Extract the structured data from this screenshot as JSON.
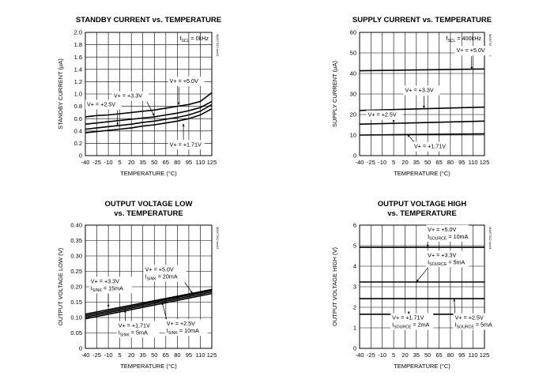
{
  "chart_data": [
    {
      "id": "c1",
      "type": "line",
      "title": [
        "STANDBY CURRENT vs. TEMPERATURE"
      ],
      "xlabel": "TEMPERATURE (°C)",
      "ylabel": "STANDBY CURRENT (µA)",
      "code": "MAX7322 toc01",
      "xlim": [
        -40,
        125
      ],
      "ylim": [
        0,
        2.0
      ],
      "xticks": [
        -40,
        -25,
        -10,
        5,
        20,
        35,
        50,
        65,
        80,
        95,
        110,
        125
      ],
      "yticks": [
        0,
        0.2,
        0.4,
        0.6,
        0.8,
        1.0,
        1.2,
        1.4,
        1.6,
        1.8,
        2.0
      ],
      "ytick_labels": [
        "0",
        "0.2",
        "0.4",
        "0.6",
        "0.8",
        "1.0",
        "1.2",
        "1.4",
        "1.6",
        "1.8",
        "2.0"
      ],
      "grid": true,
      "cond_lines": [
        {
          "text": "f",
          "sub": "SCL",
          "rest": " = 0kHz"
        }
      ],
      "series": [
        {
          "name": "V+ = +5.0V",
          "x": [
            -40,
            -25,
            -10,
            5,
            20,
            35,
            50,
            65,
            80,
            95,
            110,
            125
          ],
          "values": [
            0.63,
            0.65,
            0.66,
            0.68,
            0.7,
            0.72,
            0.74,
            0.77,
            0.8,
            0.83,
            0.88,
            1.02
          ]
        },
        {
          "name": "V+ = +3.3V",
          "x": [
            -40,
            -25,
            -10,
            5,
            20,
            35,
            50,
            65,
            80,
            95,
            110,
            125
          ],
          "values": [
            0.51,
            0.53,
            0.55,
            0.57,
            0.59,
            0.61,
            0.63,
            0.66,
            0.69,
            0.73,
            0.78,
            0.88
          ]
        },
        {
          "name": "V+ = +2.5V",
          "x": [
            -40,
            -25,
            -10,
            5,
            20,
            35,
            50,
            65,
            80,
            95,
            110,
            125
          ],
          "values": [
            0.43,
            0.45,
            0.47,
            0.49,
            0.51,
            0.54,
            0.56,
            0.59,
            0.62,
            0.66,
            0.72,
            0.83
          ]
        },
        {
          "name": "V+ = +1.71V",
          "x": [
            -40,
            -25,
            -10,
            5,
            20,
            35,
            50,
            65,
            80,
            95,
            110,
            125
          ],
          "values": [
            0.37,
            0.39,
            0.41,
            0.43,
            0.45,
            0.48,
            0.5,
            0.53,
            0.56,
            0.6,
            0.66,
            0.76
          ]
        }
      ],
      "annotations": [
        {
          "text": "V+ = +5.0V",
          "pos": [
            70,
            1.18
          ],
          "tip": [
            82,
            0.82
          ]
        },
        {
          "text": "V+ = +3.3V",
          "pos": [
            -3,
            0.94
          ],
          "tip": [
            50,
            0.64
          ]
        },
        {
          "text": "V+ = +2.5V",
          "pos": [
            -38,
            0.8
          ],
          "tip": [
            2,
            0.49
          ]
        },
        {
          "text": "V+ = +1.71V",
          "pos": [
            70,
            0.15
          ],
          "tip": [
            88,
            0.52
          ]
        }
      ]
    },
    {
      "id": "c2",
      "type": "line",
      "title": [
        "SUPPLY CURRENT vs. TEMPERATURE"
      ],
      "xlabel": "TEMPERATURE (°C)",
      "ylabel": "SUPPLY CURRENT (µA)",
      "code": "MAX7322 toc02",
      "xlim": [
        -40,
        125
      ],
      "ylim": [
        0,
        60
      ],
      "xticks": [
        -40,
        -25,
        -10,
        5,
        20,
        35,
        50,
        65,
        80,
        95,
        110,
        125
      ],
      "yticks": [
        0,
        10,
        20,
        30,
        40,
        50,
        60
      ],
      "ytick_labels": [
        "0",
        "10",
        "20",
        "30",
        "40",
        "50",
        "60"
      ],
      "grid": true,
      "cond_lines": [
        {
          "text": "f",
          "sub": "SCL",
          "rest": " = 400kHz"
        }
      ],
      "series": [
        {
          "name": "V+ = +5.0V",
          "x": [
            -40,
            125
          ],
          "values": [
            41.3,
            42.2
          ]
        },
        {
          "name": "V+ = +3.3V",
          "x": [
            -40,
            125
          ],
          "values": [
            22.0,
            23.6
          ]
        },
        {
          "name": "V+ = +2.5V",
          "x": [
            -40,
            125
          ],
          "values": [
            15.3,
            16.8
          ]
        },
        {
          "name": "V+ = +1.71V",
          "x": [
            -40,
            125
          ],
          "values": [
            10.0,
            10.6
          ]
        }
      ],
      "annotations": [
        {
          "text": "V+ = +5.0V",
          "pos": [
            88,
            50.3
          ],
          "tip": [
            108,
            42.0
          ]
        },
        {
          "text": "V+ = +3.3V",
          "pos": [
            20,
            31.0
          ],
          "tip": [
            45,
            23.0
          ]
        },
        {
          "text": "V+ = +2.5V",
          "pos": [
            -29,
            19.0
          ],
          "tip": [
            5,
            16.0
          ]
        },
        {
          "text": "V+ = +1.71V",
          "pos": [
            32,
            3.6
          ],
          "tip": [
            23,
            10.3
          ]
        }
      ]
    },
    {
      "id": "c3",
      "type": "line",
      "title": [
        "OUTPUT VOLTAGE LOW",
        "vs. TEMPERATURE"
      ],
      "xlabel": "TEMPERATURE (°C)",
      "ylabel": "OUTPUT VOLTAGE LOW (V)",
      "code": "MAX7322 toc03",
      "xlim": [
        -40,
        125
      ],
      "ylim": [
        0,
        0.4
      ],
      "xticks": [
        -40,
        -25,
        -10,
        5,
        20,
        35,
        50,
        65,
        80,
        95,
        110,
        125
      ],
      "yticks": [
        0,
        0.05,
        0.1,
        0.15,
        0.2,
        0.25,
        0.3,
        0.35,
        0.4
      ],
      "ytick_labels": [
        "0",
        "0.05",
        "0.10",
        "0.15",
        "0.20",
        "0.25",
        "0.30",
        "0.35",
        "0.40"
      ],
      "grid": true,
      "cond_lines": [],
      "series": [
        {
          "name": "V+ = +3.3V, ISINK = 15mA",
          "x": [
            -40,
            125
          ],
          "values": [
            0.111,
            0.191
          ]
        },
        {
          "name": "V+ = +5.0V, ISINK = 20mA",
          "x": [
            -40,
            125
          ],
          "values": [
            0.106,
            0.188
          ]
        },
        {
          "name": "V+ = +2.5V, ISINK = 10mA",
          "x": [
            -40,
            125
          ],
          "values": [
            0.101,
            0.183
          ]
        },
        {
          "name": "V+ = +1.71V, ISINK = 5mA",
          "x": [
            -40,
            125
          ],
          "values": [
            0.096,
            0.178
          ]
        }
      ],
      "annotations": [
        {
          "text": "V+ = +3.3V",
          "sub_line": {
            "text": "I",
            "sub": "SINK",
            "rest": " = 15mA"
          },
          "pos": [
            -33,
            0.212
          ],
          "tip": [
            -10,
            0.133
          ]
        },
        {
          "text": "V+ = +5.0V",
          "sub_line": {
            "text": "I",
            "sub": "SINK",
            "rest": " = 20mA"
          },
          "pos": [
            38,
            0.25
          ],
          "tip": [
            100,
            0.178
          ]
        },
        {
          "text": "V+ = +2.5V",
          "sub_line": {
            "text": "I",
            "sub": "SINK",
            "rest": " = 10mA"
          },
          "pos": [
            66,
            0.074
          ],
          "tip": [
            60,
            0.15
          ]
        },
        {
          "text": "V+ = +1.71V",
          "sub_line": {
            "text": "I",
            "sub": "SINK",
            "rest": " = 5mA"
          },
          "pos": [
            3,
            0.068
          ],
          "tip": [
            12,
            0.125
          ]
        }
      ]
    },
    {
      "id": "c4",
      "type": "line",
      "title": [
        "OUTPUT VOLTAGE HIGH",
        "vs. TEMPERATURE"
      ],
      "xlabel": "TEMPERATURE (°C)",
      "ylabel": "OUTPUT VOLTAGE HIGH (V)",
      "code": "MAX7322 toc04",
      "xlim": [
        -40,
        125
      ],
      "ylim": [
        0,
        6
      ],
      "xticks": [
        -40,
        -25,
        -10,
        5,
        20,
        35,
        50,
        65,
        80,
        95,
        110,
        125
      ],
      "yticks": [
        0,
        1,
        2,
        3,
        4,
        5,
        6
      ],
      "ytick_labels": [
        "0",
        "1",
        "2",
        "3",
        "4",
        "5",
        "6"
      ],
      "grid": true,
      "cond_lines": [],
      "series": [
        {
          "name": "V+ = +5.0V, ISOURCE = 10mA",
          "x": [
            -40,
            125
          ],
          "values": [
            4.92,
            4.92
          ]
        },
        {
          "name": "V+ = +3.3V, ISOURCE = 5mA",
          "x": [
            -40,
            125
          ],
          "values": [
            3.23,
            3.23
          ]
        },
        {
          "name": "V+ = +2.5V, ISOURCE = 5mA",
          "x": [
            -40,
            125
          ],
          "values": [
            2.42,
            2.42
          ]
        },
        {
          "name": "V+ = +1.71V, ISOURCE = 2mA",
          "x": [
            -40,
            125
          ],
          "values": [
            1.66,
            1.66
          ]
        }
      ],
      "annotations": [
        {
          "text": "V+ = +5.0V",
          "sub_line": {
            "text": "I",
            "sub": "SOURCE",
            "rest": " = 10mA"
          },
          "pos": [
            50,
            5.7
          ],
          "tip": [
            50,
            4.92
          ]
        },
        {
          "text": "V+ = +3.3V",
          "sub_line": {
            "text": "I",
            "sub": "SOURCE",
            "rest": " = 5mA"
          },
          "pos": [
            50,
            4.45
          ],
          "tip": [
            35,
            3.23
          ]
        },
        {
          "text": "V+ = +2.5V",
          "sub_line": {
            "text": "I",
            "sub": "SOURCE",
            "rest": " = 5mA"
          },
          "pos": [
            86,
            1.4
          ],
          "tip": [
            85,
            2.42
          ]
        },
        {
          "text": "V+ = +1.71V",
          "sub_line": {
            "text": "I",
            "sub": "SOURCE",
            "rest": " = 2mA"
          },
          "pos": [
            3,
            1.4
          ],
          "tip": [
            25,
            1.66
          ]
        }
      ]
    }
  ]
}
